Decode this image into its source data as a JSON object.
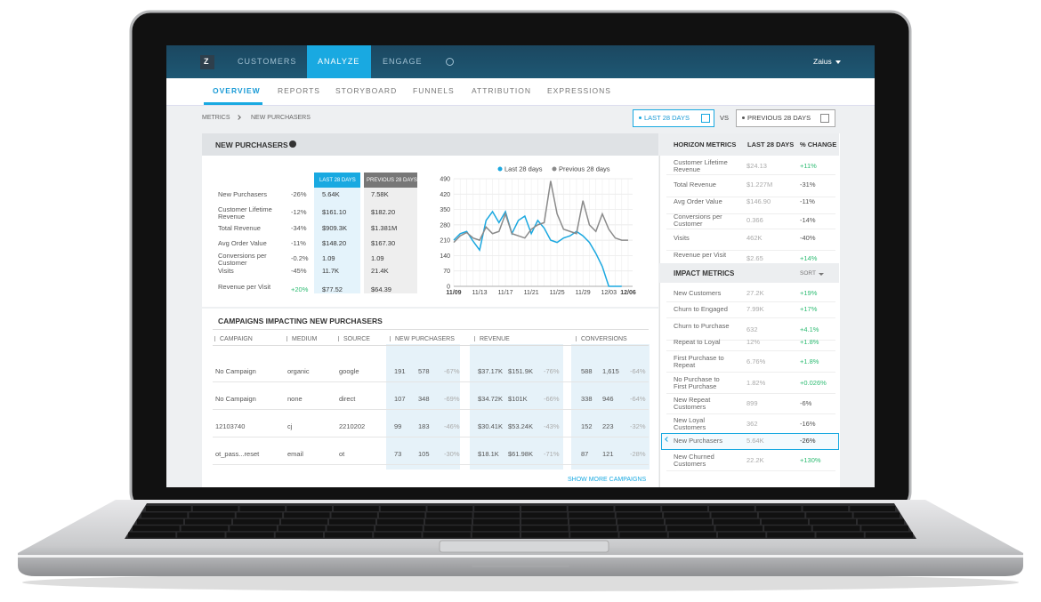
{
  "nav": {
    "logo": "Z",
    "tabs": [
      "CUSTOMERS",
      "ANALYZE",
      "ENGAGE"
    ],
    "active_tab": 1,
    "user": "Zaius"
  },
  "subnav": {
    "tabs": [
      "OVERVIEW",
      "REPORTS",
      "STORYBOARD",
      "FUNNELS",
      "ATTRIBUTION",
      "EXPRESSIONS"
    ],
    "active_tab": 0
  },
  "breadcrumb": [
    "METRICS",
    "NEW PURCHASERS"
  ],
  "date_range": {
    "current": "LAST 28 DAYS",
    "vs": "VS",
    "previous": "PREVIOUS 28 DAYS"
  },
  "panel": {
    "title": "NEW PURCHASERS",
    "metrics": {
      "headers": [
        "LAST 28 DAYS",
        "PREVIOUS 28 DAYS"
      ],
      "rows": [
        [
          "New Purchasers",
          "-26%",
          "5.64K",
          "7.58K"
        ],
        [
          "Customer Lifetime Revenue",
          "-12%",
          "$161.10",
          "$182.20"
        ],
        [
          "Total Revenue",
          "-34%",
          "$909.3K",
          "$1.381M"
        ],
        [
          "Avg Order Value",
          "-11%",
          "$148.20",
          "$167.30"
        ],
        [
          "Conversions per Customer",
          "-0.2%",
          "1.09",
          "1.09"
        ],
        [
          "Visits",
          "-45%",
          "11.7K",
          "21.4K"
        ],
        [
          "Revenue per Visit",
          "+20%",
          "$77.52",
          "$64.39"
        ]
      ]
    }
  },
  "chart_data": {
    "type": "line",
    "categories": [
      "11/09",
      null,
      null,
      null,
      "11/13",
      null,
      null,
      null,
      "11/17",
      null,
      null,
      null,
      "11/21",
      null,
      null,
      null,
      "11/25",
      null,
      null,
      null,
      "11/29",
      null,
      null,
      null,
      "12/03",
      null,
      null,
      "12/06"
    ],
    "series": [
      {
        "name": "Last 28 days",
        "color": "#1ba8e0",
        "values": [
          210,
          240,
          250,
          205,
          165,
          300,
          340,
          290,
          340,
          240,
          300,
          320,
          240,
          300,
          265,
          210,
          200,
          220,
          230,
          250,
          230,
          200,
          150,
          90,
          0,
          0,
          0,
          null
        ]
      },
      {
        "name": "Previous 28 days",
        "color": "#8a8a8a",
        "values": [
          200,
          230,
          245,
          220,
          210,
          270,
          240,
          250,
          330,
          240,
          230,
          220,
          260,
          280,
          290,
          480,
          330,
          260,
          250,
          240,
          390,
          280,
          250,
          330,
          260,
          220,
          210,
          210
        ]
      }
    ],
    "ylim": [
      0,
      490
    ],
    "yticks": [
      0,
      70,
      140,
      210,
      280,
      350,
      420,
      490
    ]
  },
  "campaigns": {
    "title": "CAMPAIGNS IMPACTING NEW PURCHASERS",
    "headers": [
      "CAMPAIGN",
      "MEDIUM",
      "SOURCE",
      "NEW PURCHASERS",
      "REVENUE",
      "CONVERSIONS"
    ],
    "rows": [
      [
        "No Campaign",
        "organic",
        "google",
        "191",
        "578",
        "-67%",
        "$37.17K",
        "$151.9K",
        "-76%",
        "588",
        "1,615",
        "-64%"
      ],
      [
        "No Campaign",
        "none",
        "direct",
        "107",
        "348",
        "-69%",
        "$34.72K",
        "$101K",
        "-66%",
        "338",
        "946",
        "-64%"
      ],
      [
        "12103740",
        "cj",
        "2210202",
        "99",
        "183",
        "-46%",
        "$30.41K",
        "$53.24K",
        "-43%",
        "152",
        "223",
        "-32%"
      ],
      [
        "ot_pass...reset",
        "email",
        "ot",
        "73",
        "105",
        "-30%",
        "$18.1K",
        "$61.98K",
        "-71%",
        "87",
        "121",
        "-28%"
      ]
    ],
    "more": "SHOW MORE CAMPAIGNS"
  },
  "horizon": {
    "headers": [
      "HORIZON METRICS",
      "LAST 28 DAYS",
      "% CHANGE"
    ],
    "rows": [
      [
        "Customer Lifetime Revenue",
        "$24.13",
        "+11%"
      ],
      [
        "Total Revenue",
        "$1.227M",
        "-31%"
      ],
      [
        "Avg Order Value",
        "$146.90",
        "-11%"
      ],
      [
        "Conversions per Customer",
        "0.366",
        "-14%"
      ],
      [
        "Visits",
        "462K",
        "-40%"
      ],
      [
        "Revenue per Visit",
        "$2.65",
        "+14%"
      ]
    ]
  },
  "impact": {
    "title": "IMPACT METRICS",
    "sort": "SORT",
    "selected_row": 8,
    "rows": [
      [
        "New Customers",
        "27.2K",
        "+19%"
      ],
      [
        "Churn to Engaged",
        "7.99K",
        "+17%"
      ],
      [
        "Churn to Purchase",
        "632",
        "+4.1%"
      ],
      [
        "Repeat to Loyal",
        "12%",
        "+1.8%"
      ],
      [
        "First Purchase to Repeat",
        "6.76%",
        "+1.8%"
      ],
      [
        "No Purchase to First Purchase",
        "1.82%",
        "+0.026%"
      ],
      [
        "New Repeat Customers",
        "899",
        "-6%"
      ],
      [
        "New Loyal Customers",
        "362",
        "-16%"
      ],
      [
        "New Purchasers",
        "5.64K",
        "-26%"
      ],
      [
        "New Churned Customers",
        "22.2K",
        "+130%"
      ]
    ]
  }
}
